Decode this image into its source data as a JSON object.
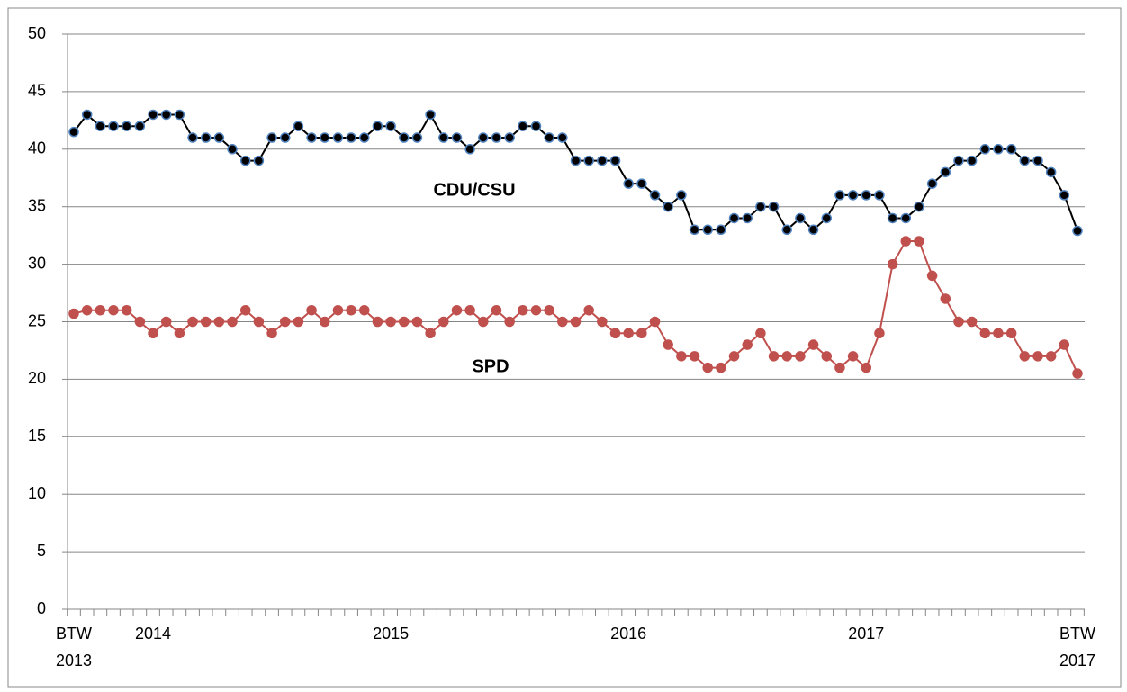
{
  "chart_data": {
    "type": "line",
    "categories": [
      "BTW 2013",
      null,
      null,
      null,
      null,
      null,
      "2014",
      null,
      null,
      null,
      null,
      null,
      null,
      null,
      null,
      null,
      null,
      null,
      null,
      null,
      null,
      null,
      null,
      null,
      "2015",
      null,
      null,
      null,
      null,
      null,
      null,
      null,
      null,
      null,
      null,
      null,
      null,
      null,
      null,
      null,
      null,
      null,
      "2016",
      null,
      null,
      null,
      null,
      null,
      null,
      null,
      null,
      null,
      null,
      null,
      null,
      null,
      null,
      null,
      null,
      null,
      "2017",
      null,
      null,
      null,
      null,
      null,
      null,
      null,
      null,
      null,
      null,
      null,
      null,
      null,
      null,
      null,
      "BTW 2017"
    ],
    "series": [
      {
        "name": "CDU/CSU",
        "color": "#000000",
        "marker_edge": "#4f81bd",
        "values": [
          41.5,
          43,
          42,
          42,
          42,
          42,
          43,
          43,
          43,
          41,
          41,
          41,
          40,
          39,
          39,
          41,
          41,
          42,
          41,
          41,
          41,
          41,
          41,
          42,
          42,
          41,
          41,
          43,
          41,
          41,
          40,
          41,
          41,
          41,
          42,
          42,
          41,
          41,
          39,
          39,
          39,
          39,
          37,
          37,
          36,
          35,
          36,
          33,
          33,
          33,
          34,
          34,
          35,
          35,
          33,
          34,
          33,
          34,
          36,
          36,
          36,
          36,
          34,
          34,
          35,
          37,
          38,
          39,
          39,
          40,
          40,
          40,
          39,
          39,
          38,
          36,
          32.9
        ]
      },
      {
        "name": "SPD",
        "color": "#c0504d",
        "marker_edge": "#c0504d",
        "values": [
          25.7,
          26,
          26,
          26,
          26,
          25,
          24,
          25,
          24,
          25,
          25,
          25,
          25,
          26,
          25,
          24,
          25,
          25,
          26,
          25,
          26,
          26,
          26,
          25,
          25,
          25,
          25,
          24,
          25,
          26,
          26,
          25,
          26,
          25,
          26,
          26,
          26,
          25,
          25,
          26,
          25,
          24,
          24,
          24,
          25,
          23,
          22,
          22,
          21,
          21,
          22,
          23,
          24,
          22,
          22,
          22,
          23,
          22,
          21,
          22,
          21,
          24,
          30,
          32,
          32,
          29,
          27,
          25,
          25,
          24,
          24,
          24,
          22,
          22,
          22,
          23,
          20.5
        ]
      }
    ],
    "ylim": [
      0,
      50
    ],
    "yticks": [
      0,
      5,
      10,
      15,
      20,
      25,
      30,
      35,
      40,
      45,
      50
    ],
    "grid": true
  }
}
